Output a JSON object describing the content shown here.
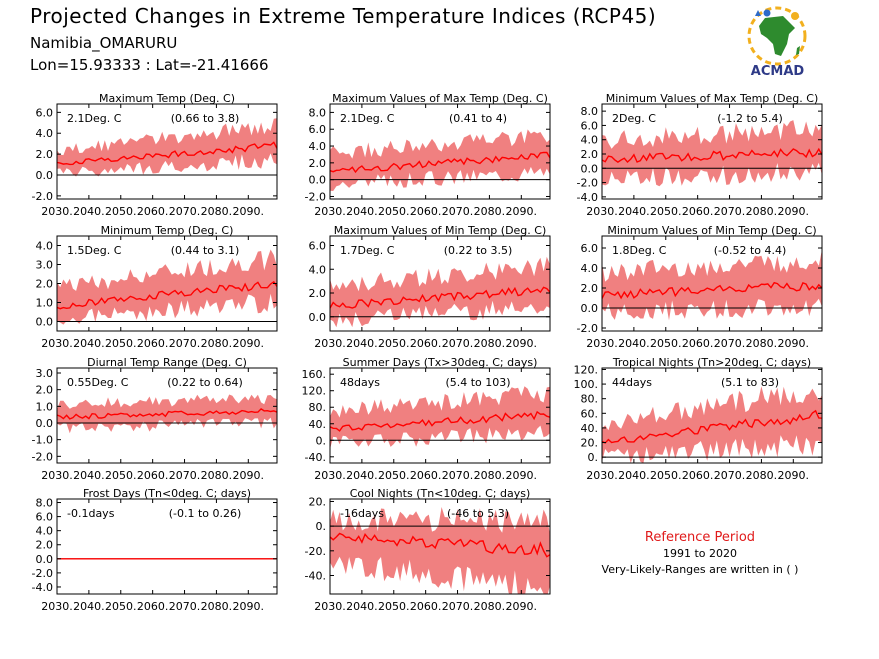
{
  "header": {
    "title": "Projected Changes in Extreme Temperature Indices (RCP45)",
    "location": "Namibia_OMARURU",
    "coords": "Lon=15.93333 : Lat=-21.41666",
    "logo_text": "ACMAD"
  },
  "reference": {
    "title": "Reference Period",
    "years": "1991 to 2020",
    "note": "Very-Likely-Ranges are written in ( )"
  },
  "colors": {
    "line": "#ff0000",
    "band": "#f08080",
    "zero": "#000000"
  },
  "chart_data": [
    {
      "type": "area",
      "title": "Maximum Temp (Deg. C)",
      "change": "2.1Deg. C",
      "range": "(0.66 to 3.8)",
      "ylim": [
        -2.3,
        6.8
      ],
      "yticks": [
        "6.0",
        "4.0",
        "2.0",
        "0.0",
        "-2.0"
      ],
      "ytick_values": [
        6,
        4,
        2,
        0,
        -2
      ],
      "xlim": [
        2030,
        2099
      ],
      "xticks": [
        "2030.",
        "2040.",
        "2050.",
        "2060.",
        "2070.",
        "2080.",
        "2090."
      ],
      "xtick_values": [
        2030,
        2040,
        2050,
        2060,
        2070,
        2080,
        2090
      ],
      "trend": {
        "x": [
          2030,
          2099
        ],
        "mean": [
          1.1,
          2.8
        ],
        "lower": [
          0.2,
          1.4
        ],
        "upper": [
          2.3,
          4.8
        ]
      }
    },
    {
      "type": "area",
      "title": "Maximum Values of Max Temp (Deg. C)",
      "change": "2.1Deg. C",
      "range": "(0.41 to 4)",
      "ylim": [
        -2.3,
        9.0
      ],
      "yticks": [
        "8.0",
        "6.0",
        "4.0",
        "2.0",
        "0.0",
        "-2.0"
      ],
      "ytick_values": [
        8,
        6,
        4,
        2,
        0,
        -2
      ],
      "xlim": [
        2030,
        2099
      ],
      "xticks": [
        "2030.",
        "2040.",
        "2050.",
        "2060.",
        "2070.",
        "2080.",
        "2090."
      ],
      "xtick_values": [
        2030,
        2040,
        2050,
        2060,
        2070,
        2080,
        2090
      ],
      "trend": {
        "x": [
          2030,
          2099
        ],
        "mean": [
          1.0,
          2.9
        ],
        "lower": [
          -0.5,
          1.0
        ],
        "upper": [
          3.2,
          5.2
        ]
      }
    },
    {
      "type": "area",
      "title": "Minimum Values of Max Temp (Deg. C)",
      "change": "2Deg. C",
      "range": "(-1.2 to 5.4)",
      "ylim": [
        -4.3,
        9.0
      ],
      "yticks": [
        "8.0",
        "6.0",
        "4.0",
        "2.0",
        "0.0",
        "-2.0",
        "-4.0"
      ],
      "ytick_values": [
        8,
        6,
        4,
        2,
        0,
        -2,
        -4
      ],
      "xlim": [
        2030,
        2099
      ],
      "xticks": [
        "2030.",
        "2040.",
        "2050.",
        "2060.",
        "2070.",
        "2080.",
        "2090."
      ],
      "xtick_values": [
        2030,
        2040,
        2050,
        2060,
        2070,
        2080,
        2090
      ],
      "trend": {
        "x": [
          2030,
          2099
        ],
        "mean": [
          1.2,
          2.3
        ],
        "lower": [
          -1.5,
          -0.5
        ],
        "upper": [
          4.0,
          5.5
        ]
      }
    },
    {
      "type": "area",
      "title": "Minimum Temp (Deg. C)",
      "change": "1.5Deg. C",
      "range": "(0.44 to 3.1)",
      "ylim": [
        -0.5,
        4.5
      ],
      "yticks": [
        "4.0",
        "3.0",
        "2.0",
        "1.0",
        "0.0"
      ],
      "ytick_values": [
        4,
        3,
        2,
        1,
        0
      ],
      "xlim": [
        2030,
        2099
      ],
      "xticks": [
        "2030.",
        "2040.",
        "2050.",
        "2060.",
        "2070.",
        "2080.",
        "2090."
      ],
      "xtick_values": [
        2030,
        2040,
        2050,
        2060,
        2070,
        2080,
        2090
      ],
      "trend": {
        "x": [
          2030,
          2099
        ],
        "mean": [
          0.8,
          2.0
        ],
        "lower": [
          0.1,
          1.0
        ],
        "upper": [
          1.8,
          3.3
        ]
      }
    },
    {
      "type": "area",
      "title": "Maximum Values of Min Temp (Deg. C)",
      "change": "1.7Deg. C",
      "range": "(0.22 to 3.5)",
      "ylim": [
        -1.2,
        6.8
      ],
      "yticks": [
        "6.0",
        "4.0",
        "2.0",
        "0.0"
      ],
      "ytick_values": [
        6,
        4,
        2,
        0
      ],
      "xlim": [
        2030,
        2099
      ],
      "xticks": [
        "2030.",
        "2040.",
        "2050.",
        "2060.",
        "2070.",
        "2080.",
        "2090."
      ],
      "xtick_values": [
        2030,
        2040,
        2050,
        2060,
        2070,
        2080,
        2090
      ],
      "trend": {
        "x": [
          2030,
          2099
        ],
        "mean": [
          0.9,
          2.3
        ],
        "lower": [
          -0.3,
          0.9
        ],
        "upper": [
          2.6,
          4.3
        ]
      }
    },
    {
      "type": "area",
      "title": "Minimum Values of Min Temp (Deg. C)",
      "change": "1.8Deg. C",
      "range": "(-0.52 to 4.4)",
      "ylim": [
        -2.3,
        7.2
      ],
      "yticks": [
        "6.0",
        "4.0",
        "2.0",
        "0.0",
        "-2.0"
      ],
      "ytick_values": [
        6,
        4,
        2,
        0,
        -2
      ],
      "xlim": [
        2030,
        2099
      ],
      "xticks": [
        "2030.",
        "2040.",
        "2050.",
        "2060.",
        "2070.",
        "2080.",
        "2090."
      ],
      "xtick_values": [
        2030,
        2040,
        2050,
        2060,
        2070,
        2080,
        2090
      ],
      "trend": {
        "x": [
          2030,
          2099
        ],
        "mean": [
          1.3,
          2.3
        ],
        "lower": [
          -0.5,
          0.3
        ],
        "upper": [
          3.5,
          4.8
        ]
      }
    },
    {
      "type": "area",
      "title": "Diurnal Temp Range (Deg. C)",
      "change": "0.55Deg. C",
      "range": "(0.22 to 0.64)",
      "ylim": [
        -2.4,
        3.3
      ],
      "yticks": [
        "3.0",
        "2.0",
        "1.0",
        "0.0",
        "-1.0",
        "-2.0"
      ],
      "ytick_values": [
        3,
        2,
        1,
        0,
        -1,
        -2
      ],
      "xlim": [
        2030,
        2099
      ],
      "xticks": [
        "2030.",
        "2040.",
        "2050.",
        "2060.",
        "2070.",
        "2080.",
        "2090."
      ],
      "xtick_values": [
        2030,
        2040,
        2050,
        2060,
        2070,
        2080,
        2090
      ],
      "trend": {
        "x": [
          2030,
          2099
        ],
        "mean": [
          0.35,
          0.75
        ],
        "lower": [
          -0.3,
          0.0
        ],
        "upper": [
          1.1,
          1.5
        ]
      }
    },
    {
      "type": "area",
      "title": "Summer Days (Tx>30deg. C; days)",
      "change": "48days",
      "range": "(5.4 to 103)",
      "ylim": [
        -55,
        175
      ],
      "yticks": [
        "160.",
        "120.",
        "80.",
        "40.",
        "0.",
        "-40."
      ],
      "ytick_values": [
        160,
        120,
        80,
        40,
        0,
        -40
      ],
      "xlim": [
        2030,
        2099
      ],
      "xticks": [
        "2030.",
        "2040.",
        "2050.",
        "2060.",
        "2070.",
        "2080.",
        "2090."
      ],
      "xtick_values": [
        2030,
        2040,
        2050,
        2060,
        2070,
        2080,
        2090
      ],
      "trend": {
        "x": [
          2030,
          2099
        ],
        "mean": [
          28,
          62
        ],
        "lower": [
          -5,
          18
        ],
        "upper": [
          70,
          115
        ]
      }
    },
    {
      "type": "area",
      "title": "Tropical Nights (Tn>20deg. C; days)",
      "change": "44days",
      "range": "(5.1 to 83)",
      "ylim": [
        -8,
        122
      ],
      "yticks": [
        "120.",
        "100.",
        "80.",
        "60.",
        "40.",
        "20.",
        "0."
      ],
      "ytick_values": [
        120,
        100,
        80,
        60,
        40,
        20,
        0
      ],
      "xlim": [
        2030,
        2099
      ],
      "xticks": [
        "2030.",
        "2040.",
        "2050.",
        "2060.",
        "2070.",
        "2080.",
        "2090."
      ],
      "xtick_values": [
        2030,
        2040,
        2050,
        2060,
        2070,
        2080,
        2090
      ],
      "trend": {
        "x": [
          2030,
          2099
        ],
        "mean": [
          20,
          58
        ],
        "lower": [
          0,
          18
        ],
        "upper": [
          45,
          95
        ]
      }
    },
    {
      "type": "area",
      "title": "Frost Days (Tn<0deg. C; days)",
      "change": "-0.1days",
      "range": "(-0.1 to 0.26)",
      "ylim": [
        -5,
        8.5
      ],
      "yticks": [
        "8.0",
        "6.0",
        "4.0",
        "2.0",
        "0.0",
        "-2.0",
        "-4.0"
      ],
      "ytick_values": [
        8,
        6,
        4,
        2,
        0,
        -2,
        -4
      ],
      "xlim": [
        2030,
        2099
      ],
      "xticks": [
        "2030.",
        "2040.",
        "2050.",
        "2060.",
        "2070.",
        "2080.",
        "2090."
      ],
      "xtick_values": [
        2030,
        2040,
        2050,
        2060,
        2070,
        2080,
        2090
      ],
      "trend": {
        "x": [
          2030,
          2099
        ],
        "mean": [
          0,
          0
        ],
        "lower": [
          0,
          0
        ],
        "upper": [
          0,
          0
        ]
      }
    },
    {
      "type": "area",
      "title": "Cool Nights (Tn<10deg. C; days)",
      "change": "-16days",
      "range": "(-46 to 5.3)",
      "ylim": [
        -55,
        22
      ],
      "yticks": [
        "20.",
        "0.",
        "-20.",
        "-40."
      ],
      "ytick_values": [
        20,
        0,
        -20,
        -40
      ],
      "xlim": [
        2030,
        2099
      ],
      "xticks": [
        "2030.",
        "2040.",
        "2050.",
        "2060.",
        "2070.",
        "2080.",
        "2090."
      ],
      "xtick_values": [
        2030,
        2040,
        2050,
        2060,
        2070,
        2080,
        2090
      ],
      "trend": {
        "x": [
          2030,
          2099
        ],
        "mean": [
          -8,
          -20
        ],
        "lower": [
          -30,
          -50
        ],
        "upper": [
          5,
          5
        ]
      }
    }
  ]
}
